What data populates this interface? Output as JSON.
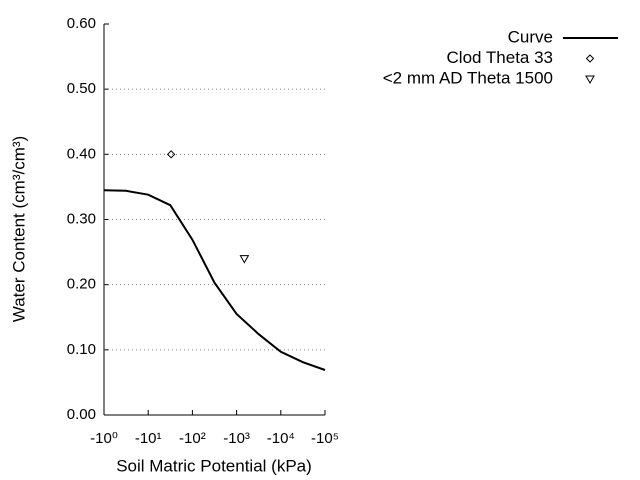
{
  "chart_data": {
    "type": "line",
    "xlabel": "Soil Matric Potential (kPa)",
    "ylabel": "Water Content (cm³/cm³)",
    "xscale": "log",
    "xlim": [
      -1,
      -100000
    ],
    "xticks": [
      {
        "value": -1,
        "label": "-10⁰"
      },
      {
        "value": -10,
        "label": "-10¹"
      },
      {
        "value": -100,
        "label": "-10²"
      },
      {
        "value": -1000,
        "label": "-10³"
      },
      {
        "value": -10000,
        "label": "-10⁴"
      },
      {
        "value": -100000,
        "label": "-10⁵"
      }
    ],
    "ylim": [
      0,
      0.6
    ],
    "yticks": [
      {
        "value": 0,
        "label": "0.00"
      },
      {
        "value": 0.1,
        "label": "0.10"
      },
      {
        "value": 0.2,
        "label": "0.20"
      },
      {
        "value": 0.3,
        "label": "0.30"
      },
      {
        "value": 0.4,
        "label": "0.40"
      },
      {
        "value": 0.5,
        "label": "0.50"
      },
      {
        "value": 0.6,
        "label": "0.60"
      }
    ],
    "grid": true,
    "legend": "top-right",
    "series": [
      {
        "name": "Curve",
        "color": "#000000",
        "marker": "none",
        "x": [
          -1,
          -3.16,
          -10,
          -31.6,
          -100,
          -316,
          -1000,
          -3162,
          -10000,
          -31623,
          -100000
        ],
        "values": [
          0.345,
          0.344,
          0.338,
          0.322,
          0.269,
          0.203,
          0.155,
          0.124,
          0.097,
          0.081,
          0.069
        ]
      },
      {
        "name": "Clod Theta 33",
        "color": "#000000",
        "marker": "diamond",
        "x": [
          -33
        ],
        "values": [
          0.4
        ]
      },
      {
        "name": "<2 mm AD Theta 1500",
        "color": "#000000",
        "marker": "triangle-down",
        "x": [
          -1500
        ],
        "values": [
          0.24
        ]
      }
    ]
  }
}
